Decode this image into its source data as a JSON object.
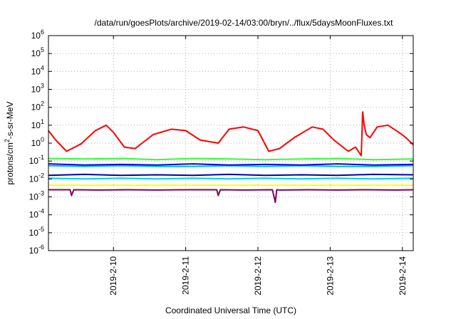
{
  "chart_data": {
    "type": "line",
    "title": "/data/run/goesPlots/archive/2019-02-14/03:00/bryn/../flux/5daysMoonFluxes.txt",
    "xlabel": "Coordinated Universal Time (UTC)",
    "ylabel": "protons/cm²-s-sr-MeV",
    "ylabel_parts": {
      "pre": "protons/cm",
      "sup": "2",
      "post": "-s-sr-MeV"
    },
    "y_scale": "log",
    "ylim": [
      1e-06,
      1000000.0
    ],
    "xlim_days": [
      9.1,
      14.15
    ],
    "x_ticks": [
      {
        "label": "2019-2-10",
        "day": 10
      },
      {
        "label": "2019-2-11",
        "day": 11
      },
      {
        "label": "2019-2-12",
        "day": 12
      },
      {
        "label": "2019-2-13",
        "day": 13
      },
      {
        "label": "2019-2-14",
        "day": 14
      }
    ],
    "y_ticks": [
      {
        "base": "10",
        "exp": "-6",
        "value": 1e-06
      },
      {
        "base": "10",
        "exp": "-5",
        "value": 1e-05
      },
      {
        "base": "10",
        "exp": "-4",
        "value": 0.0001
      },
      {
        "base": "10",
        "exp": "-3",
        "value": 0.001
      },
      {
        "base": "10",
        "exp": "-2",
        "value": 0.01
      },
      {
        "base": "10",
        "exp": "-1",
        "value": 0.1
      },
      {
        "base": "10",
        "exp": "0",
        "value": 1
      },
      {
        "base": "10",
        "exp": "1",
        "value": 10
      },
      {
        "base": "10",
        "exp": "2",
        "value": 100
      },
      {
        "base": "10",
        "exp": "3",
        "value": 1000
      },
      {
        "base": "10",
        "exp": "4",
        "value": 10000
      },
      {
        "base": "10",
        "exp": "5",
        "value": 100000
      },
      {
        "base": "10",
        "exp": "6",
        "value": 1000000
      }
    ],
    "grid": true,
    "series": [
      {
        "color": "#ff0000",
        "x": [
          9.1,
          9.2,
          9.35,
          9.55,
          9.75,
          9.9,
          10.0,
          10.15,
          10.3,
          10.55,
          10.8,
          11.0,
          11.2,
          11.45,
          11.6,
          11.8,
          12.0,
          12.15,
          12.3,
          12.5,
          12.75,
          12.9,
          13.05,
          13.25,
          13.35,
          13.43,
          13.45,
          13.47,
          13.5,
          13.55,
          13.65,
          13.8,
          13.95,
          14.05,
          14.15
        ],
        "y": [
          5,
          1.5,
          0.35,
          0.9,
          5,
          10,
          4,
          0.6,
          0.5,
          3,
          6,
          5,
          1.5,
          1,
          6,
          8,
          5,
          0.35,
          0.5,
          2,
          8,
          6,
          1.5,
          0.35,
          0.6,
          0.2,
          55,
          10,
          3,
          2,
          8,
          10,
          4,
          2,
          0.8
        ]
      },
      {
        "color": "#33ff33",
        "x": [
          9.1,
          9.6,
          10.1,
          10.6,
          11.1,
          11.6,
          12.1,
          12.6,
          13.1,
          13.6,
          14.15
        ],
        "y": [
          0.14,
          0.13,
          0.14,
          0.12,
          0.14,
          0.13,
          0.12,
          0.13,
          0.14,
          0.12,
          0.13
        ]
      },
      {
        "color": "#00cc99",
        "x": [
          9.1,
          9.6,
          10.1,
          10.6,
          11.1,
          11.6,
          12.1,
          12.6,
          13.1,
          13.6,
          14.15
        ],
        "y": [
          0.055,
          0.05,
          0.055,
          0.05,
          0.05,
          0.055,
          0.05,
          0.055,
          0.05,
          0.05,
          0.055
        ]
      },
      {
        "color": "#0000ff",
        "x": [
          9.1,
          9.6,
          10.1,
          10.6,
          11.1,
          11.6,
          12.1,
          12.6,
          13.1,
          13.6,
          14.15
        ],
        "y": [
          0.07,
          0.06,
          0.065,
          0.06,
          0.07,
          0.06,
          0.065,
          0.06,
          0.07,
          0.06,
          0.065
        ]
      },
      {
        "color": "#0000aa",
        "x": [
          9.1,
          9.6,
          10.1,
          10.6,
          11.1,
          11.6,
          12.1,
          12.6,
          13.1,
          13.6,
          14.15
        ],
        "y": [
          0.016,
          0.018,
          0.016,
          0.017,
          0.016,
          0.018,
          0.016,
          0.017,
          0.016,
          0.018,
          0.017
        ]
      },
      {
        "color": "#00ccff",
        "x": [
          9.1,
          9.6,
          10.1,
          10.6,
          11.1,
          11.6,
          12.1,
          12.6,
          13.1,
          13.6,
          14.15
        ],
        "y": [
          0.011,
          0.01,
          0.011,
          0.01,
          0.011,
          0.01,
          0.011,
          0.01,
          0.011,
          0.01,
          0.011
        ]
      },
      {
        "color": "#ffff00",
        "x": [
          9.1,
          9.6,
          10.1,
          10.6,
          11.1,
          11.6,
          12.1,
          12.6,
          13.1,
          13.6,
          14.15
        ],
        "y": [
          0.0045,
          0.0045,
          0.0045,
          0.0045,
          0.0045,
          0.0045,
          0.0045,
          0.0045,
          0.0045,
          0.0045,
          0.0045
        ]
      },
      {
        "color": "#800060",
        "x": [
          9.1,
          9.4,
          9.42,
          9.45,
          9.8,
          10.2,
          10.6,
          11.0,
          11.43,
          11.45,
          11.48,
          11.8,
          12.2,
          12.24,
          12.26,
          12.3,
          12.7,
          13.1,
          13.5,
          13.9,
          14.15
        ],
        "y": [
          0.0025,
          0.0025,
          0.0012,
          0.0025,
          0.0024,
          0.0025,
          0.0024,
          0.0025,
          0.0025,
          0.0012,
          0.0025,
          0.0024,
          0.0025,
          0.0005,
          0.0025,
          0.0024,
          0.0025,
          0.0024,
          0.0025,
          0.0024,
          0.0025
        ]
      }
    ]
  }
}
